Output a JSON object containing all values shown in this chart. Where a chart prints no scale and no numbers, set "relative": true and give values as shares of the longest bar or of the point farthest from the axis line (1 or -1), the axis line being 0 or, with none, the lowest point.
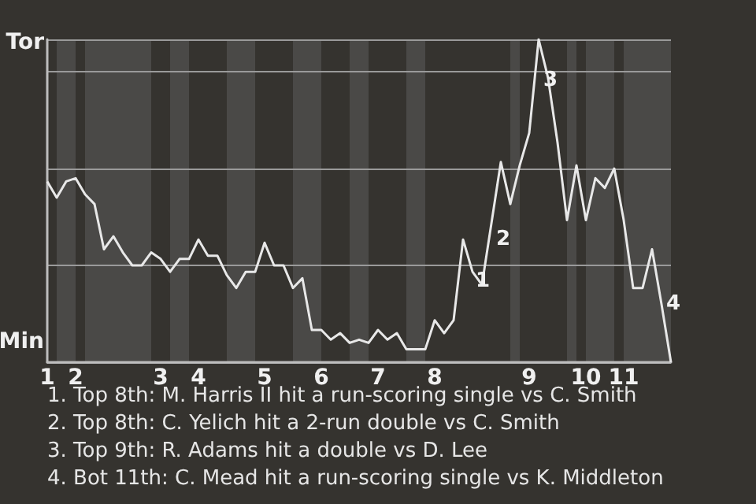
{
  "chart_data": {
    "type": "line",
    "color": "#e8e8e8",
    "relative": true,
    "categories": [
      "1",
      null,
      null,
      "2",
      null,
      null,
      null,
      null,
      null,
      null,
      null,
      null,
      "3",
      null,
      null,
      null,
      "4",
      null,
      null,
      null,
      null,
      null,
      null,
      "5",
      null,
      null,
      null,
      null,
      null,
      "6",
      null,
      null,
      null,
      null,
      null,
      "7",
      null,
      null,
      null,
      null,
      null,
      "8",
      null,
      null,
      null,
      null,
      null,
      null,
      null,
      null,
      null,
      "9",
      null,
      null,
      null,
      null,
      null,
      "10",
      null,
      null,
      null,
      "11",
      null,
      null,
      null,
      null,
      null
    ],
    "values": [
      0.56,
      0.51,
      0.56,
      0.57,
      0.52,
      0.49,
      0.35,
      0.39,
      0.34,
      0.3,
      0.3,
      0.34,
      0.32,
      0.28,
      0.32,
      0.32,
      0.38,
      0.33,
      0.33,
      0.27,
      0.23,
      0.28,
      0.28,
      0.37,
      0.3,
      0.3,
      0.23,
      0.26,
      0.1,
      0.1,
      0.07,
      0.09,
      0.06,
      0.07,
      0.06,
      0.1,
      0.07,
      0.09,
      0.04,
      0.04,
      0.04,
      0.13,
      0.09,
      0.13,
      0.38,
      0.28,
      0.24,
      0.43,
      0.62,
      0.49,
      0.61,
      0.71,
      1,
      0.88,
      0.68,
      0.44,
      0.61,
      0.44,
      0.57,
      0.54,
      0.6,
      0.44,
      0.23,
      0.23,
      0.35,
      0.18,
      0
    ],
    "grid": "y",
    "marker": "none",
    "line_style": "solid",
    "annotations": [
      "Tor",
      "Min",
      "1",
      "2",
      "3",
      "4",
      "1. Top 8th: M. Harris II hit a run-scoring single vs C. Smith",
      "2. Top 8th: C. Yelich hit a 2-run double vs C. Smith",
      "3. Top 9th: R. Adams hit a double vs D. Lee",
      "4. Bot 11th: C. Mead hit a run-scoring single vs K. Middleton"
    ]
  }
}
